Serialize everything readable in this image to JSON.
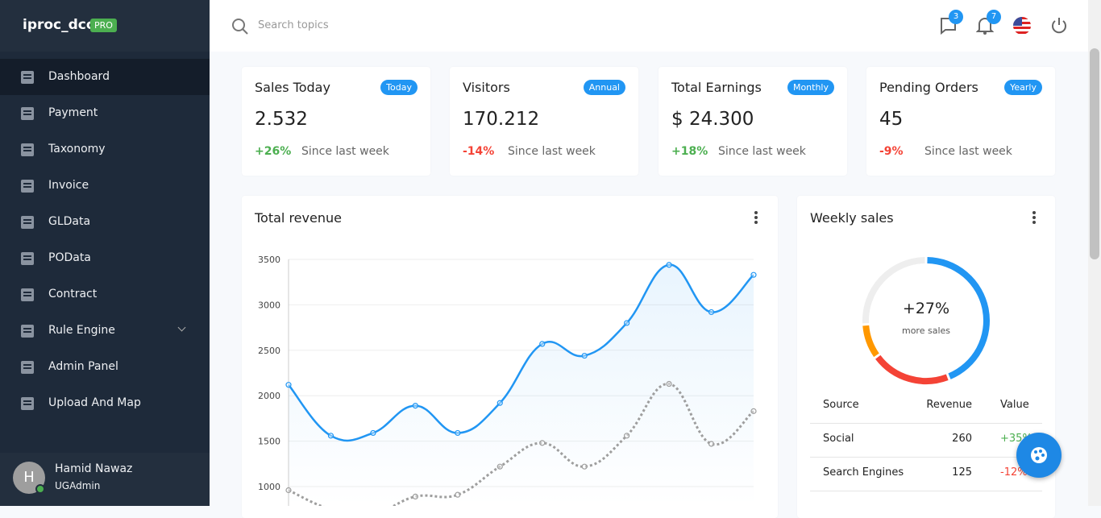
{
  "sidebar": {
    "brand": "iproc_dcc",
    "badge": "PRO",
    "menu": [
      "Dashboard",
      "Payment",
      "Taxonomy",
      "Invoice",
      "GLData",
      "POData",
      "Contract",
      "Rule Engine",
      "Admin Panel",
      "Upload And Map"
    ],
    "user": {
      "initial": "H",
      "name": "Hamid Nawaz",
      "role": "UGAdmin"
    }
  },
  "topbar": {
    "search_placeholder": "Search topics",
    "messages_count": "3",
    "notifications_count": "7"
  },
  "stats": [
    {
      "title": "Sales Today",
      "badge": "Today",
      "value": "2.532",
      "change": "+26%",
      "note": "Since last week"
    },
    {
      "title": "Visitors",
      "badge": "Annual",
      "value": "170.212",
      "change": "-14%",
      "note": "Since last week"
    },
    {
      "title": "Total Earnings",
      "badge": "Monthly",
      "value": "$ 24.300",
      "change": "+18%",
      "note": "Since last week"
    },
    {
      "title": "Pending Orders",
      "badge": "Yearly",
      "value": "45",
      "change": "-9%",
      "note": "Since last week"
    }
  ],
  "revenue": {
    "title": "Total revenue",
    "chart_data": {
      "type": "line",
      "categories": [
        null,
        null,
        null,
        null,
        null,
        null,
        null,
        null,
        null,
        null,
        null,
        null
      ],
      "series": [
        {
          "color": "#2196f3",
          "area": true,
          "dashed": false,
          "values": [
            2120,
            1560,
            1590,
            1890,
            1590,
            1920,
            2570,
            2440,
            2800,
            3440,
            2920,
            3330
          ]
        },
        {
          "color": "#9e9e9e",
          "area": false,
          "dashed": true,
          "values": [
            960,
            750,
            700,
            890,
            910,
            1220,
            1480,
            1220,
            1560,
            2130,
            1470,
            1830
          ]
        }
      ],
      "ylim": [
        1000,
        3500
      ],
      "yticks": [
        1000,
        1500,
        2000,
        2500,
        3000,
        3500
      ],
      "grid": true
    }
  },
  "weekly": {
    "title": "Weekly sales",
    "chart_data": {
      "type": "doughnut",
      "values": [
        44,
        21,
        9,
        26
      ],
      "colors": [
        "#2196f3",
        "#f44336",
        "#ff9800",
        "#eeeeee"
      ],
      "center_value": "+27%",
      "center_label": "more sales"
    },
    "table": {
      "header": [
        "Source",
        "Revenue",
        "Value"
      ],
      "rows": [
        [
          "Social",
          "260",
          "+35%"
        ],
        [
          "Search Engines",
          "125",
          "-12%"
        ]
      ]
    }
  }
}
